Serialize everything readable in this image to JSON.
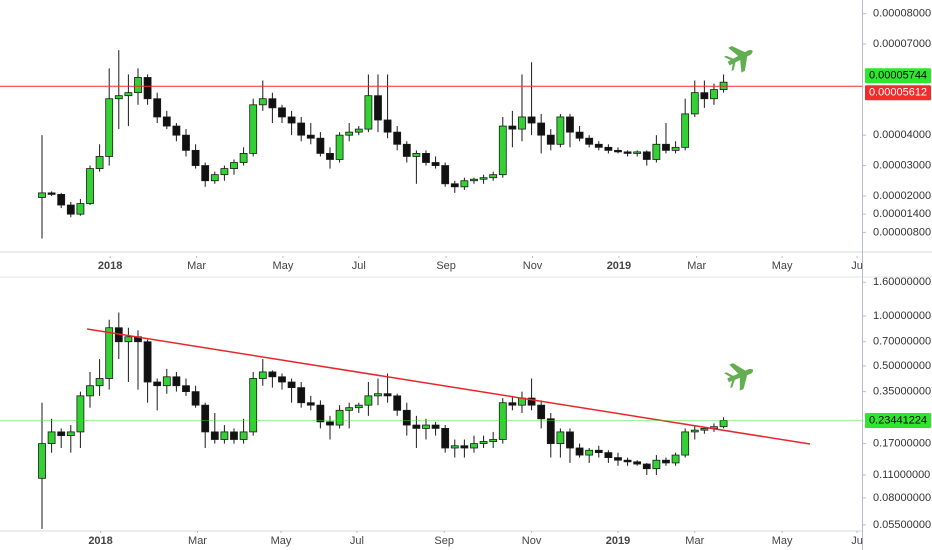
{
  "chart_data": [
    {
      "type": "candlestick",
      "open": [
        1.95e-05,
        2.1e-05,
        2.05e-05,
        1.7e-05,
        1.4e-05,
        1.75e-05,
        2.9e-05,
        3.3e-05,
        5.2e-05,
        5.3e-05,
        5.4e-05,
        5.9e-05,
        5.2e-05,
        4.6e-05,
        4.3e-05,
        4e-05,
        3.5e-05,
        3e-05,
        2.5e-05,
        2.7e-05,
        2.9e-05,
        3.1e-05,
        3.4e-05,
        5e-05,
        5.2e-05,
        4.9e-05,
        4.6e-05,
        4.4e-05,
        4e-05,
        3.9e-05,
        3.4e-05,
        3.2e-05,
        4e-05,
        4.1e-05,
        4.2e-05,
        5.3e-05,
        4.5e-05,
        4.1e-05,
        3.7e-05,
        3.3e-05,
        3.4e-05,
        3.1e-05,
        3e-05,
        2.4e-05,
        2.3e-05,
        2.5e-05,
        2.55e-05,
        2.6e-05,
        2.7e-05,
        4.3e-05,
        4.2e-05,
        4.6e-05,
        4.4e-05,
        4e-05,
        3.7e-05,
        4.6e-05,
        4.1e-05,
        3.9e-05,
        3.7e-05,
        3.6e-05,
        3.5e-05,
        3.45e-05,
        3.4e-05,
        3.45e-05,
        3.2e-05,
        3.7e-05,
        3.5e-05,
        3.6e-05,
        4.7e-05,
        5.4e-05,
        5.2e-05,
        5.5e-05
      ],
      "high": [
        4e-05,
        2.15e-05,
        2.1e-05,
        1.8e-05,
        1.9e-05,
        3e-05,
        3.7e-05,
        6.2e-05,
        6.8e-05,
        6e-05,
        6.2e-05,
        6e-05,
        5.4e-05,
        4.8e-05,
        4.4e-05,
        4.2e-05,
        3.7e-05,
        3.1e-05,
        2.8e-05,
        3e-05,
        3.2e-05,
        3.6e-05,
        5.2e-05,
        5.8e-05,
        5.4e-05,
        5e-05,
        4.8e-05,
        4.6e-05,
        4.4e-05,
        4.1e-05,
        3.6e-05,
        4.1e-05,
        4.4e-05,
        4.3e-05,
        6e-05,
        6e-05,
        6e-05,
        4.3e-05,
        3.8e-05,
        3.5e-05,
        3.5e-05,
        3.3e-05,
        3.1e-05,
        2.5e-05,
        2.6e-05,
        2.6e-05,
        2.7e-05,
        2.8e-05,
        4.6e-05,
        4.8e-05,
        6e-05,
        6.4e-05,
        4.7e-05,
        4.2e-05,
        4.7e-05,
        4.7e-05,
        4.3e-05,
        4e-05,
        3.8e-05,
        3.7e-05,
        3.6e-05,
        3.5e-05,
        3.5e-05,
        3.5e-05,
        4e-05,
        4.4e-05,
        3.8e-05,
        5.2e-05,
        5.8e-05,
        5.8e-05,
        5.7e-05,
        6e-05
      ],
      "low": [
        6e-06,
        2e-05,
        1.6e-05,
        1.3e-05,
        1.35e-05,
        1.7e-05,
        2.8e-05,
        3e-05,
        4.2e-05,
        4.3e-05,
        5e-05,
        5e-05,
        4.4e-05,
        4.2e-05,
        3.8e-05,
        3.3e-05,
        2.9e-05,
        2.3e-05,
        2.4e-05,
        2.5e-05,
        2.7e-05,
        3e-05,
        3.3e-05,
        4.8e-05,
        4.4e-05,
        4.4e-05,
        4e-05,
        3.8e-05,
        3.7e-05,
        3.3e-05,
        2.9e-05,
        3.1e-05,
        3.8e-05,
        4e-05,
        4.1e-05,
        4.1e-05,
        3.9e-05,
        3.5e-05,
        3.1e-05,
        2.4e-05,
        3e-05,
        2.9e-05,
        2.3e-05,
        2.1e-05,
        2.2e-05,
        2.4e-05,
        2.4e-05,
        2.5e-05,
        2.6e-05,
        3.6e-05,
        3.8e-05,
        4e-05,
        3.4e-05,
        3.5e-05,
        3.6e-05,
        3.6e-05,
        3.8e-05,
        3.6e-05,
        3.5e-05,
        3.4e-05,
        3.4e-05,
        3.3e-05,
        3.3e-05,
        3e-05,
        3.1e-05,
        3.4e-05,
        3.4e-05,
        3.5e-05,
        4.6e-05,
        4.9e-05,
        5e-05,
        5.4e-05
      ],
      "close": [
        2.1e-05,
        2.05e-05,
        1.7e-05,
        1.4e-05,
        1.75e-05,
        2.9e-05,
        3.3e-05,
        5.2e-05,
        5.3e-05,
        5.4e-05,
        5.9e-05,
        5.2e-05,
        4.6e-05,
        4.3e-05,
        4e-05,
        3.5e-05,
        3e-05,
        2.5e-05,
        2.7e-05,
        2.9e-05,
        3.1e-05,
        3.4e-05,
        5e-05,
        5.2e-05,
        4.9e-05,
        4.6e-05,
        4.4e-05,
        4e-05,
        3.9e-05,
        3.4e-05,
        3.2e-05,
        4e-05,
        4.1e-05,
        4.2e-05,
        5.3e-05,
        4.5e-05,
        4.1e-05,
        3.7e-05,
        3.3e-05,
        3.4e-05,
        3.1e-05,
        3e-05,
        2.4e-05,
        2.3e-05,
        2.5e-05,
        2.55e-05,
        2.6e-05,
        2.7e-05,
        4.3e-05,
        4.2e-05,
        4.6e-05,
        4.4e-05,
        4e-05,
        3.7e-05,
        4.6e-05,
        4.1e-05,
        3.9e-05,
        3.7e-05,
        3.6e-05,
        3.5e-05,
        3.45e-05,
        3.4e-05,
        3.45e-05,
        3.2e-05,
        3.7e-05,
        3.5e-05,
        3.6e-05,
        4.7e-05,
        5.4e-05,
        5.2e-05,
        5.5e-05,
        5.744e-05
      ],
      "up_color": "#34d134",
      "down_color": "#111111",
      "log_scale": false,
      "xlim": [
        -4.375,
        85.42
      ],
      "xticks": [
        {
          "value": 7.1,
          "label": "2018"
        },
        {
          "value": 16.1,
          "label": "Mar"
        },
        {
          "value": 25.1,
          "label": "May"
        },
        {
          "value": 33,
          "label": "Jul"
        },
        {
          "value": 42.1,
          "label": "Sep"
        },
        {
          "value": 51.1,
          "label": "Nov"
        },
        {
          "value": 60.1,
          "label": "2019"
        },
        {
          "value": 68.2,
          "label": "Mar"
        },
        {
          "value": 77.1,
          "label": "May"
        },
        {
          "value": 84.9,
          "label": "Ju"
        }
      ],
      "ylim": [
        2.2e-06,
        8.45e-05
      ],
      "yticks": [
        {
          "value": 8e-05,
          "label": "0.00008000"
        },
        {
          "value": 7e-05,
          "label": "0.00007000"
        },
        {
          "value": 4e-05,
          "label": "0.00004000"
        },
        {
          "value": 3e-05,
          "label": "0.00003000"
        },
        {
          "value": 2e-05,
          "label": "0.00002000"
        },
        {
          "value": 1.4e-05,
          "label": "0.00001400"
        },
        {
          "value": 8e-06,
          "label": "0.00000800"
        }
      ],
      "price_lines": [
        {
          "value": 5.744e-05,
          "label": "0.00005744",
          "color": "#2ee62e",
          "text_color": "#000000",
          "line": false
        },
        {
          "value": 5.612e-05,
          "label": "0.00005612",
          "color": "#f22b2b",
          "text_color": "#ffffff",
          "line": true
        }
      ]
    },
    {
      "type": "candlestick",
      "open": [
        0.105,
        0.17,
        0.2,
        0.19,
        0.2,
        0.33,
        0.38,
        0.42,
        0.85,
        0.7,
        0.75,
        0.7,
        0.4,
        0.38,
        0.43,
        0.38,
        0.35,
        0.29,
        0.2,
        0.18,
        0.2,
        0.18,
        0.2,
        0.42,
        0.46,
        0.43,
        0.4,
        0.37,
        0.3,
        0.29,
        0.23,
        0.22,
        0.27,
        0.28,
        0.29,
        0.33,
        0.34,
        0.33,
        0.27,
        0.22,
        0.21,
        0.22,
        0.21,
        0.16,
        0.165,
        0.16,
        0.17,
        0.175,
        0.18,
        0.3,
        0.29,
        0.32,
        0.29,
        0.24,
        0.17,
        0.2,
        0.16,
        0.145,
        0.155,
        0.15,
        0.14,
        0.135,
        0.132,
        0.128,
        0.12,
        0.135,
        0.13,
        0.145,
        0.2,
        0.205,
        0.21,
        0.215
      ],
      "high": [
        0.3,
        0.24,
        0.21,
        0.22,
        0.35,
        0.46,
        0.55,
        0.95,
        1.05,
        0.85,
        0.82,
        0.72,
        0.42,
        0.48,
        0.46,
        0.42,
        0.38,
        0.3,
        0.26,
        0.22,
        0.21,
        0.24,
        0.46,
        0.55,
        0.47,
        0.45,
        0.42,
        0.4,
        0.33,
        0.31,
        0.25,
        0.29,
        0.3,
        0.3,
        0.4,
        0.42,
        0.45,
        0.34,
        0.3,
        0.25,
        0.24,
        0.23,
        0.22,
        0.18,
        0.18,
        0.19,
        0.19,
        0.2,
        0.32,
        0.33,
        0.35,
        0.42,
        0.31,
        0.26,
        0.21,
        0.21,
        0.17,
        0.16,
        0.165,
        0.155,
        0.15,
        0.14,
        0.135,
        0.13,
        0.145,
        0.14,
        0.15,
        0.21,
        0.22,
        0.215,
        0.225,
        0.245
      ],
      "low": [
        0.052,
        0.15,
        0.16,
        0.15,
        0.16,
        0.28,
        0.33,
        0.36,
        0.55,
        0.4,
        0.36,
        0.3,
        0.27,
        0.34,
        0.35,
        0.33,
        0.28,
        0.16,
        0.17,
        0.17,
        0.17,
        0.17,
        0.19,
        0.38,
        0.37,
        0.36,
        0.3,
        0.28,
        0.27,
        0.21,
        0.18,
        0.21,
        0.21,
        0.26,
        0.25,
        0.29,
        0.3,
        0.25,
        0.19,
        0.16,
        0.18,
        0.19,
        0.15,
        0.14,
        0.14,
        0.15,
        0.16,
        0.16,
        0.17,
        0.27,
        0.26,
        0.27,
        0.21,
        0.14,
        0.14,
        0.13,
        0.14,
        0.13,
        0.14,
        0.13,
        0.125,
        0.125,
        0.125,
        0.11,
        0.11,
        0.125,
        0.125,
        0.14,
        0.18,
        0.195,
        0.2,
        0.21
      ],
      "close": [
        0.17,
        0.2,
        0.19,
        0.2,
        0.33,
        0.38,
        0.42,
        0.85,
        0.7,
        0.75,
        0.7,
        0.4,
        0.38,
        0.43,
        0.38,
        0.35,
        0.29,
        0.2,
        0.18,
        0.2,
        0.18,
        0.2,
        0.42,
        0.46,
        0.43,
        0.4,
        0.37,
        0.3,
        0.29,
        0.23,
        0.22,
        0.27,
        0.28,
        0.29,
        0.33,
        0.34,
        0.33,
        0.27,
        0.22,
        0.21,
        0.22,
        0.21,
        0.16,
        0.165,
        0.16,
        0.17,
        0.175,
        0.18,
        0.3,
        0.29,
        0.32,
        0.29,
        0.24,
        0.17,
        0.2,
        0.16,
        0.145,
        0.155,
        0.15,
        0.14,
        0.135,
        0.132,
        0.128,
        0.12,
        0.135,
        0.13,
        0.145,
        0.2,
        0.205,
        0.21,
        0.215,
        0.23441224
      ],
      "up_color": "#34d134",
      "down_color": "#111111",
      "log_scale": true,
      "xlim": [
        -4.375,
        85.42
      ],
      "xticks": [
        {
          "value": 6.1,
          "label": "2018"
        },
        {
          "value": 16.2,
          "label": "Mar"
        },
        {
          "value": 24.9,
          "label": "May"
        },
        {
          "value": 32.8,
          "label": "Jul"
        },
        {
          "value": 41.9,
          "label": "Sep"
        },
        {
          "value": 51,
          "label": "Nov"
        },
        {
          "value": 60,
          "label": "2019"
        },
        {
          "value": 68,
          "label": "Mar"
        },
        {
          "value": 77.1,
          "label": "May"
        },
        {
          "value": 84.9,
          "label": "Ju"
        }
      ],
      "ylim": [
        0.0505,
        1.72
      ],
      "yticks": [
        {
          "value": 1.6,
          "label": "1.60000000"
        },
        {
          "value": 1.0,
          "label": "1.00000000"
        },
        {
          "value": 0.7,
          "label": "0.70000000"
        },
        {
          "value": 0.5,
          "label": "0.50000000"
        },
        {
          "value": 0.35,
          "label": "0.35000000"
        },
        {
          "value": 0.17,
          "label": "0.17000000"
        },
        {
          "value": 0.11,
          "label": "0.11000000"
        },
        {
          "value": 0.08,
          "label": "0.08000000"
        },
        {
          "value": 0.055,
          "label": "0.05500000"
        }
      ],
      "trendline": {
        "x": [
          4.7,
          80
        ],
        "y": [
          0.835,
          0.169
        ],
        "color": "#e8262b"
      },
      "price_lines": [
        {
          "value": 0.23441224,
          "color": "#2ee62e",
          "text_color": "#000000",
          "line": true
        }
      ]
    }
  ]
}
